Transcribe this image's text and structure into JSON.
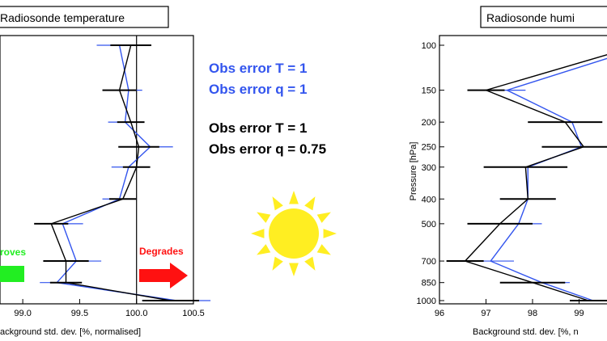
{
  "colors": {
    "blue": "#3355ee",
    "black": "#000000",
    "green": "#22ee22",
    "red": "#ff1111",
    "sun": "#ffee22"
  },
  "legend": {
    "blue_line1": "Obs error T = 1",
    "blue_line2": "Obs error q = 1",
    "black_line1": "Obs error T = 1",
    "black_line2": "Obs error q = 0.75"
  },
  "arrows": {
    "improves": "roves",
    "degrades": "Degrades"
  },
  "icon": "sun-icon",
  "chart_data": [
    {
      "type": "line",
      "title": "Radiosonde temperature",
      "xlabel": "ackground std. dev. [%, normalised]",
      "ylabel": "",
      "xlim": [
        98.8,
        100.5
      ],
      "x_ticks": [
        "99.0",
        "99.5",
        "100.0",
        "100.5"
      ],
      "x_tick_values": [
        99.0,
        99.5,
        100.0,
        100.5
      ],
      "reference_line": 100.0,
      "levels": [
        100,
        150,
        200,
        250,
        300,
        400,
        500,
        700,
        850,
        1000
      ],
      "y_scale": "log",
      "series": [
        {
          "color": "blue",
          "x": [
            99.85,
            99.93,
            99.9,
            100.12,
            99.93,
            99.85,
            99.35,
            99.47,
            99.3,
            100.35
          ],
          "err": [
            0.2,
            0.12,
            0.15,
            0.2,
            0.15,
            0.15,
            0.18,
            0.22,
            0.15,
            0.3
          ]
        },
        {
          "color": "black",
          "x": [
            99.95,
            99.85,
            99.95,
            100.02,
            100.0,
            99.88,
            99.25,
            99.38,
            99.38,
            100.3
          ],
          "err": [
            0.18,
            0.15,
            0.12,
            0.18,
            0.12,
            0.12,
            0.15,
            0.2,
            0.14,
            0.25
          ]
        }
      ]
    },
    {
      "type": "line",
      "title": "Radiosonde humi",
      "xlabel": "Background std. dev. [%, n",
      "ylabel": "Pressure [hPa]",
      "xlim": [
        96,
        100
      ],
      "x_ticks": [
        "96",
        "97",
        "98",
        "99"
      ],
      "x_tick_values": [
        96,
        97,
        98,
        99
      ],
      "y_ticks": [
        "100",
        "150",
        "200",
        "250",
        "300",
        "400",
        "500",
        "700",
        "850",
        "1000"
      ],
      "levels": [
        100,
        150,
        200,
        250,
        300,
        400,
        500,
        700,
        850,
        1000
      ],
      "y_scale": "log",
      "series": [
        {
          "color": "blue",
          "x": [
            100.5,
            97.45,
            98.85,
            99.05,
            97.9,
            97.9,
            97.7,
            97.1,
            98.2,
            99.3
          ],
          "err": [
            0.3,
            0.4,
            0.6,
            0.8,
            0.7,
            0.6,
            0.5,
            0.5,
            0.6,
            0.5
          ]
        },
        {
          "color": "black",
          "x": [
            100.3,
            97.0,
            98.7,
            99.1,
            97.85,
            97.9,
            97.3,
            96.55,
            98.0,
            99.2
          ],
          "err": [
            0.3,
            0.4,
            0.8,
            0.9,
            0.9,
            0.6,
            0.7,
            0.4,
            0.7,
            0.4
          ]
        }
      ]
    }
  ]
}
